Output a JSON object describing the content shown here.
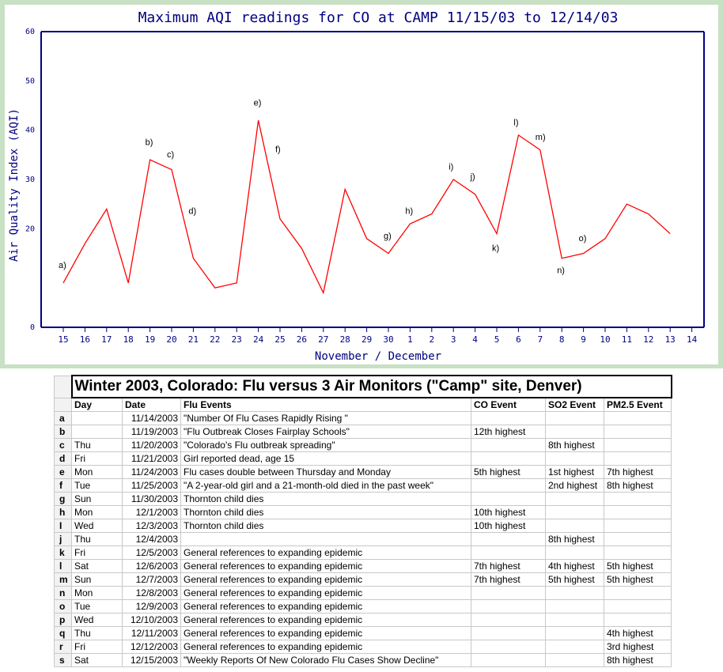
{
  "chart_data": {
    "type": "line",
    "title": "Maximum AQI readings for CO at CAMP 11/15/03 to 12/14/03",
    "xlabel": "November / December",
    "ylabel": "Air Quality Index (AQI)",
    "ylim": [
      0,
      60
    ],
    "yticks": [
      "0",
      "20",
      "30",
      "40",
      "50",
      "60"
    ],
    "categories": [
      "15",
      "16",
      "17",
      "18",
      "19",
      "20",
      "21",
      "22",
      "23",
      "24",
      "25",
      "26",
      "27",
      "28",
      "29",
      "30",
      "1",
      "2",
      "3",
      "4",
      "5",
      "6",
      "7",
      "8",
      "9",
      "10",
      "11",
      "12",
      "13",
      "14"
    ],
    "series": [
      {
        "color": "#ff0000",
        "values": [
          9,
          17,
          24,
          9,
          34,
          32,
          14,
          8,
          9,
          42,
          22,
          16,
          7,
          28,
          18,
          15,
          21,
          23,
          30,
          27,
          19,
          39,
          36,
          14,
          15,
          18,
          25,
          23,
          19,
          null
        ]
      }
    ],
    "annotations": [
      {
        "label": "a)",
        "x": 0,
        "y": 12
      },
      {
        "label": "b)",
        "x": 4,
        "y": 37
      },
      {
        "label": "c)",
        "x": 5,
        "y": 34.5
      },
      {
        "label": "d)",
        "x": 6,
        "y": 23
      },
      {
        "label": "e)",
        "x": 9,
        "y": 45
      },
      {
        "label": "f)",
        "x": 10,
        "y": 35.5
      },
      {
        "label": "g)",
        "x": 15,
        "y": 18
      },
      {
        "label": "h)",
        "x": 16,
        "y": 23
      },
      {
        "label": "i)",
        "x": 18,
        "y": 32
      },
      {
        "label": "j)",
        "x": 19,
        "y": 30
      },
      {
        "label": "k)",
        "x": 20,
        "y": 15.5
      },
      {
        "label": "l)",
        "x": 21,
        "y": 41
      },
      {
        "label": "m)",
        "x": 22,
        "y": 38
      },
      {
        "label": "n)",
        "x": 23,
        "y": 11
      },
      {
        "label": "o)",
        "x": 24,
        "y": 17.5
      }
    ],
    "grid": false
  },
  "table": {
    "title": "Winter 2003, Colorado:   Flu versus 3 Air Monitors (\"Camp\" site, Denver)",
    "headers": [
      "Day",
      "Date",
      "Flu Events",
      "CO Event",
      "SO2 Event",
      "PM2.5 Event"
    ],
    "rows": [
      {
        "id": "a",
        "day": "",
        "date": "11/14/2003",
        "event": "\"Number Of Flu Cases Rapidly Rising \"",
        "co": "",
        "so2": "",
        "pm": ""
      },
      {
        "id": "b",
        "day": "",
        "date": "11/19/2003",
        "event": "\"Flu Outbreak Closes Fairplay Schools\"",
        "co": "12th highest",
        "so2": "",
        "pm": ""
      },
      {
        "id": "c",
        "day": "Thu",
        "date": "11/20/2003",
        "event": "\"Colorado's Flu outbreak spreading\"",
        "co": "",
        "so2": "8th highest",
        "pm": ""
      },
      {
        "id": "d",
        "day": "Fri",
        "date": "11/21/2003",
        "event": "Girl reported dead, age 15",
        "co": "",
        "so2": "",
        "pm": ""
      },
      {
        "id": "e",
        "day": "Mon",
        "date": "11/24/2003",
        "event": "Flu cases double between Thursday and Monday",
        "co": "5th highest",
        "so2": "1st highest",
        "pm": "7th highest"
      },
      {
        "id": "f",
        "day": "Tue",
        "date": "11/25/2003",
        "event": "\"A 2-year-old girl and a 21-month-old died in the past week\"",
        "co": "",
        "so2": "2nd highest",
        "pm": "8th highest"
      },
      {
        "id": "g",
        "day": "Sun",
        "date": "11/30/2003",
        "event": "Thornton child dies",
        "co": "",
        "so2": "",
        "pm": ""
      },
      {
        "id": "h",
        "day": "Mon",
        "date": "12/1/2003",
        "event": "Thornton child dies",
        "co": "10th highest",
        "so2": "",
        "pm": ""
      },
      {
        "id": "I",
        "day": "Wed",
        "date": "12/3/2003",
        "event": "Thornton child dies",
        "co": "10th highest",
        "so2": "",
        "pm": ""
      },
      {
        "id": "j",
        "day": "Thu",
        "date": "12/4/2003",
        "event": "",
        "co": "",
        "so2": "8th highest",
        "pm": ""
      },
      {
        "id": "k",
        "day": "Fri",
        "date": "12/5/2003",
        "event": "General references to expanding epidemic",
        "co": "",
        "so2": "",
        "pm": ""
      },
      {
        "id": "l",
        "day": "Sat",
        "date": "12/6/2003",
        "event": "General references to expanding epidemic",
        "co": "7th highest",
        "so2": "4th highest",
        "pm": "5th highest"
      },
      {
        "id": "m",
        "day": "Sun",
        "date": "12/7/2003",
        "event": "General references to expanding epidemic",
        "co": "7th highest",
        "so2": "5th highest",
        "pm": "5th highest"
      },
      {
        "id": "n",
        "day": "Mon",
        "date": "12/8/2003",
        "event": "General references to expanding epidemic",
        "co": "",
        "so2": "",
        "pm": ""
      },
      {
        "id": "o",
        "day": "Tue",
        "date": "12/9/2003",
        "event": "General references to expanding epidemic",
        "co": "",
        "so2": "",
        "pm": ""
      },
      {
        "id": "p",
        "day": "Wed",
        "date": "12/10/2003",
        "event": "General references to expanding epidemic",
        "co": "",
        "so2": "",
        "pm": ""
      },
      {
        "id": "q",
        "day": "Thu",
        "date": "12/11/2003",
        "event": "General references to expanding epidemic",
        "co": "",
        "so2": "",
        "pm": "4th highest"
      },
      {
        "id": "r",
        "day": "Fri",
        "date": "12/12/2003",
        "event": "General references to expanding epidemic",
        "co": "",
        "so2": "",
        "pm": "3rd highest"
      },
      {
        "id": "s",
        "day": "Sat",
        "date": "12/15/2003",
        "event": "\"Weekly Reports Of New Colorado Flu Cases Show Decline\"",
        "co": "",
        "so2": "",
        "pm": "8th highest"
      }
    ]
  },
  "colors": {
    "frame": "#c8e0c4",
    "axis": "#000080",
    "line": "#ff0000"
  }
}
